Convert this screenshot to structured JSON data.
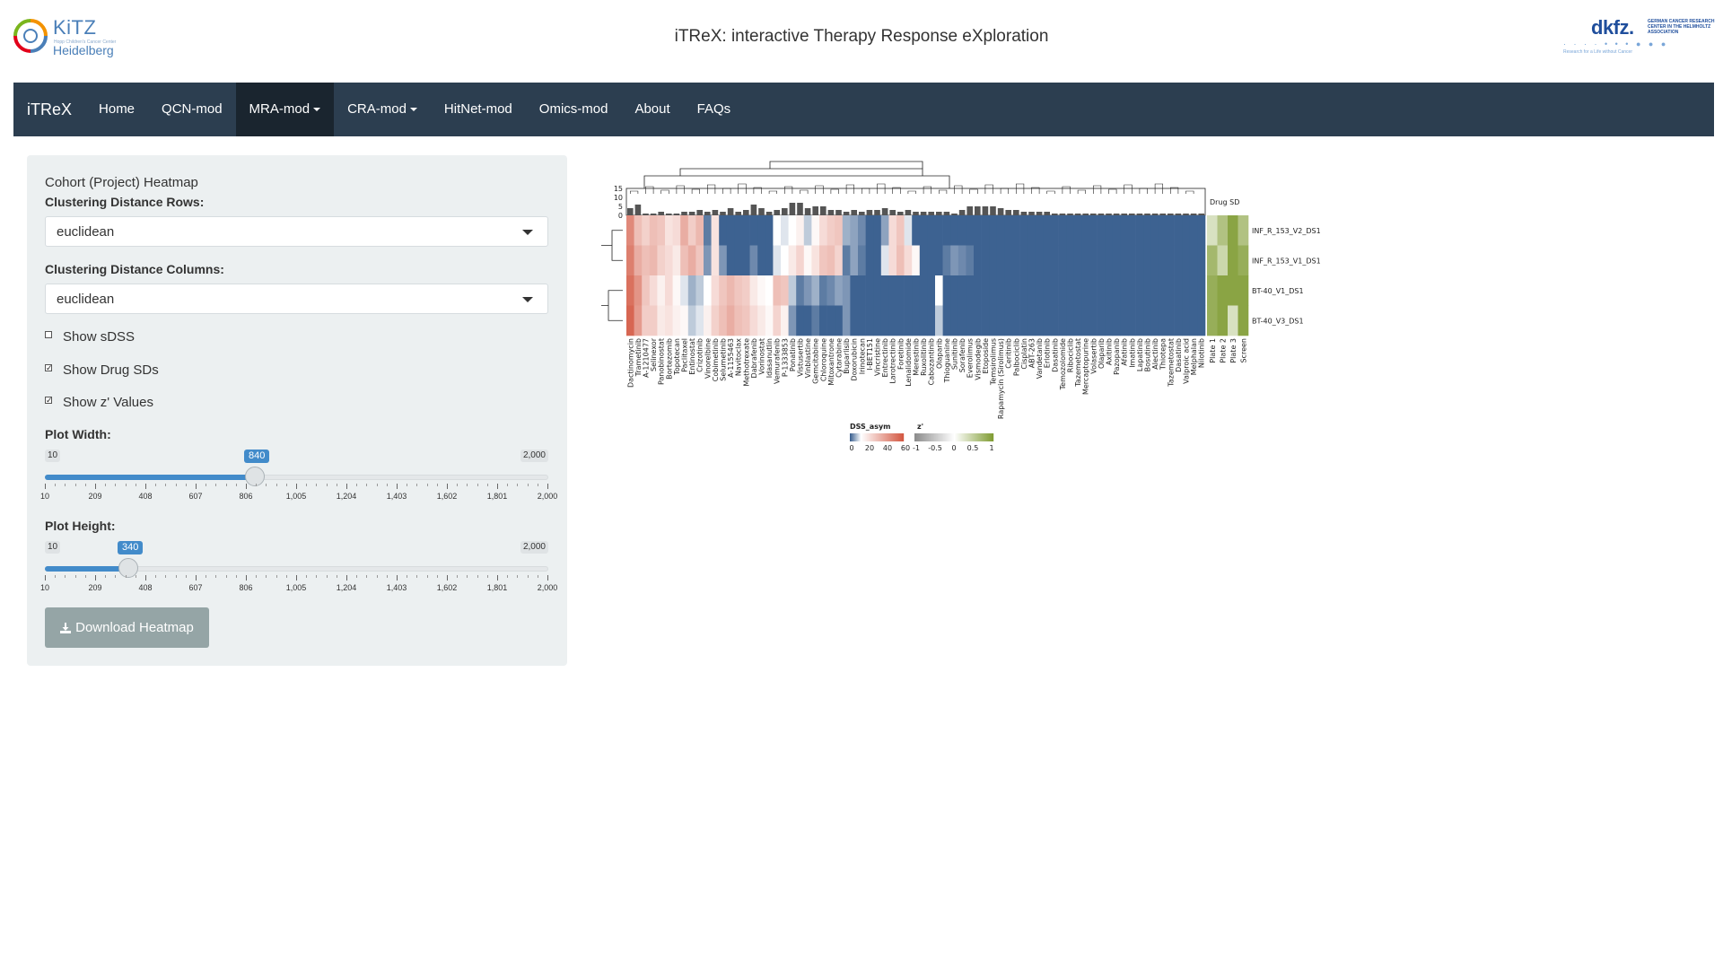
{
  "header": {
    "kitz_logo": {
      "name": "KiTZ",
      "tagline": "Hopp Children's Cancer Center",
      "city": "Heidelberg"
    },
    "title": "iTReX: interactive Therapy Response eXploration",
    "dkfz_logo": {
      "name": "dkfz.",
      "side_text": "GERMAN CANCER RESEARCH CENTER IN THE HELMHOLTZ ASSOCIATION",
      "tagline": "Research for a Life without Cancer"
    }
  },
  "navbar": {
    "brand": "iTReX",
    "items": [
      {
        "label": "Home",
        "active": false,
        "dropdown": false
      },
      {
        "label": "QCN-mod",
        "active": false,
        "dropdown": false
      },
      {
        "label": "MRA-mod",
        "active": true,
        "dropdown": true
      },
      {
        "label": "CRA-mod",
        "active": false,
        "dropdown": true
      },
      {
        "label": "HitNet-mod",
        "active": false,
        "dropdown": false
      },
      {
        "label": "Omics-mod",
        "active": false,
        "dropdown": false
      },
      {
        "label": "About",
        "active": false,
        "dropdown": false
      },
      {
        "label": "FAQs",
        "active": false,
        "dropdown": false
      }
    ]
  },
  "sidebar": {
    "title": "Cohort (Project) Heatmap",
    "rows_label": "Clustering Distance Rows:",
    "rows_value": "euclidean",
    "cols_label": "Clustering Distance Columns:",
    "cols_value": "euclidean",
    "checks": [
      {
        "label": "Show sDSS",
        "checked": false
      },
      {
        "label": "Show Drug SDs",
        "checked": true
      },
      {
        "label": "Show z' Values",
        "checked": true
      }
    ],
    "width_slider": {
      "label": "Plot Width:",
      "min": 10,
      "max": 2000,
      "value": 840,
      "min_label": "10",
      "max_label": "2,000",
      "value_label": "840"
    },
    "height_slider": {
      "label": "Plot Height:",
      "min": 10,
      "max": 2000,
      "value": 340,
      "min_label": "10",
      "max_label": "2,000",
      "value_label": "340"
    },
    "slider_ticks": [
      "10",
      "209",
      "408",
      "607",
      "806",
      "1,005",
      "1,204",
      "1,403",
      "1,602",
      "1,801",
      "2,000"
    ],
    "download_label": "Download Heatmap"
  },
  "colors": {
    "navbar": "#2c3e50",
    "navbar_active": "#1a252f",
    "panel": "#ecf0f1",
    "slider_blue": "#428bca",
    "heat_low": "#3d6291",
    "heat_mid": "#ffffff",
    "heat_high": "#d2543e",
    "z_low": "#8c8c8c",
    "z_high": "#7d9a2f"
  },
  "chart_data": {
    "type": "heatmap",
    "rows": [
      "INF_R_153_V2_DS1",
      "INF_R_153_V1_DS1",
      "BT-40_V1_DS1",
      "BT-40_V3_DS1"
    ],
    "columns": [
      "Dactinomycin",
      "Trametinib",
      "A-1210477",
      "Selinexor",
      "Panobinostat",
      "Bortezomib",
      "Topotecan",
      "Paclitaxel",
      "Entinostat",
      "Crizotinib",
      "Vinorelbine",
      "Cobimetinib",
      "Selumetinib",
      "A-1155463",
      "Navitoclax",
      "Methotrexate",
      "Dabrafenib",
      "Vorinostat",
      "Idasanutlin",
      "Vemurafenib",
      "P-1333853",
      "Ponatinib",
      "Vistusertib",
      "Vinblastine",
      "Gemcitabine",
      "Chloroquine",
      "Mitoxantrone",
      "Cytarabine",
      "Buparlisib",
      "Doxorubicin",
      "Irinotecan",
      "I-BET151",
      "Vincristine",
      "Entrectinib",
      "Larotrectinib",
      "Foretinib",
      "Lenalidomide",
      "Merestinib",
      "Ruxolitinib",
      "Cabozantinib",
      "Olaparib",
      "Thioguanine",
      "Sunitinib",
      "Sorafenib",
      "Everolimus",
      "Vismodegib",
      "Etoposide",
      "Temsirolimus",
      "Rapamycin (Sirolimus)",
      "Ceritinib",
      "Palbociclib",
      "Cisplatin",
      "ABT-263",
      "Vandetanib",
      "Erlotinib",
      "Dasatinib",
      "Temozolomide",
      "Ribociclib",
      "Tazemetostat",
      "Mercaptopurine",
      "Volasertib",
      "Olaparib",
      "Axitinib",
      "Pazopanib",
      "Afatinib",
      "Imatinib",
      "Lapatinib",
      "Bosutinib",
      "Alectinib",
      "Thiotepa",
      "Tazemetostat",
      "Dasatinib",
      "Valproic acid",
      "Melphalan",
      "Nilotinib"
    ],
    "annotation_columns": [
      "Plate 1",
      "Plate 2",
      "Plate 3",
      "Screen"
    ],
    "drug_sd_label": "Drug SD",
    "drug_sd_ticks": [
      "15",
      "10",
      "5",
      "0"
    ],
    "drug_sd": [
      4,
      6,
      1,
      1,
      2,
      1,
      1,
      2,
      2,
      3,
      2,
      3,
      2,
      4,
      2,
      3,
      6,
      4,
      2,
      3,
      4,
      7,
      7,
      4,
      5,
      5,
      3,
      3,
      2,
      3,
      2,
      3,
      3,
      4,
      3,
      2,
      3,
      2,
      2,
      2,
      2,
      2,
      1,
      3,
      5,
      5,
      5,
      5,
      4,
      3,
      3,
      2,
      2,
      2,
      2,
      1,
      1,
      1,
      1,
      1,
      1,
      1,
      1,
      1,
      1,
      1,
      1,
      1,
      1,
      1,
      1,
      1,
      1,
      1,
      1
    ],
    "dss_legend": {
      "title": "DSS_asym",
      "ticks": [
        "0",
        "20",
        "40",
        "60"
      ]
    },
    "z_legend": {
      "title": "z'",
      "ticks": [
        "-1",
        "-0.5",
        "0",
        "0.5",
        "1"
      ]
    },
    "dss_values": [
      [
        45,
        30,
        25,
        30,
        28,
        20,
        22,
        35,
        26,
        32,
        2,
        20,
        0,
        0,
        0,
        0,
        0,
        0,
        0,
        12,
        10,
        12,
        16,
        8,
        14,
        22,
        26,
        28,
        6,
        5,
        3,
        0,
        0,
        5,
        22,
        28,
        10,
        0,
        0,
        0,
        0,
        0,
        0,
        0,
        0,
        0,
        0,
        0,
        0,
        0,
        0,
        0,
        0,
        0,
        0,
        0,
        0,
        0,
        0,
        0,
        0,
        0,
        0,
        0,
        0,
        0,
        0,
        0,
        0,
        0,
        0,
        0,
        0,
        0,
        0
      ],
      [
        48,
        35,
        30,
        32,
        25,
        22,
        18,
        30,
        35,
        28,
        4,
        20,
        4,
        0,
        0,
        0,
        3,
        0,
        0,
        10,
        12,
        18,
        24,
        14,
        20,
        28,
        30,
        24,
        2,
        5,
        2,
        0,
        0,
        10,
        22,
        30,
        22,
        14,
        0,
        0,
        0,
        2,
        4,
        3,
        2,
        0,
        0,
        0,
        0,
        0,
        0,
        0,
        0,
        0,
        0,
        0,
        0,
        0,
        0,
        0,
        0,
        0,
        0,
        0,
        0,
        0,
        0,
        0,
        0,
        0,
        0,
        0,
        0,
        0,
        0
      ],
      [
        52,
        42,
        28,
        22,
        16,
        22,
        14,
        10,
        6,
        8,
        12,
        22,
        28,
        32,
        28,
        26,
        18,
        14,
        12,
        30,
        28,
        8,
        2,
        4,
        6,
        2,
        3,
        5,
        4,
        0,
        0,
        0,
        0,
        0,
        0,
        0,
        0,
        0,
        0,
        0,
        12,
        0,
        0,
        0,
        0,
        0,
        0,
        0,
        0,
        0,
        0,
        0,
        0,
        0,
        0,
        0,
        0,
        0,
        0,
        0,
        0,
        0,
        0,
        0,
        0,
        0,
        0,
        0,
        0,
        0,
        0,
        0,
        0,
        0,
        0
      ],
      [
        55,
        40,
        26,
        26,
        18,
        20,
        16,
        14,
        8,
        10,
        16,
        25,
        30,
        35,
        30,
        28,
        22,
        18,
        14,
        24,
        16,
        4,
        0,
        0,
        2,
        0,
        0,
        0,
        4,
        0,
        0,
        0,
        0,
        0,
        0,
        0,
        0,
        0,
        0,
        0,
        8,
        0,
        0,
        0,
        0,
        0,
        0,
        0,
        0,
        0,
        0,
        0,
        0,
        0,
        0,
        0,
        0,
        0,
        0,
        0,
        0,
        0,
        0,
        0,
        0,
        0,
        0,
        0,
        0,
        0,
        0,
        0,
        0,
        0,
        0
      ]
    ],
    "z_values": [
      [
        0.3,
        0.6,
        0.9,
        0.6
      ],
      [
        0.7,
        0.4,
        0.9,
        0.8
      ],
      [
        0.8,
        0.9,
        0.9,
        0.9
      ],
      [
        0.8,
        0.9,
        0.3,
        0.9
      ]
    ]
  }
}
